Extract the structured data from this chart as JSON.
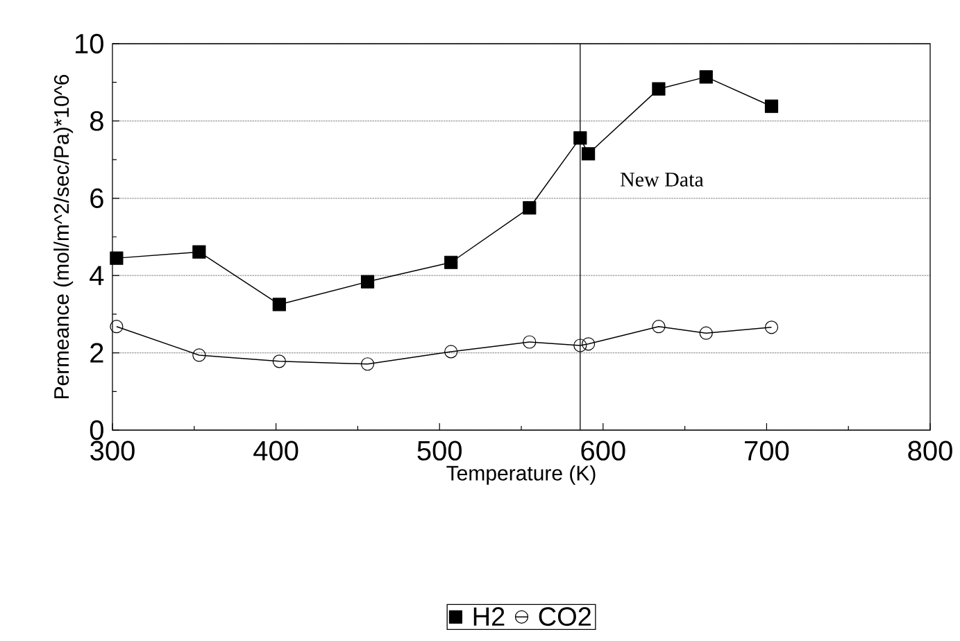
{
  "chart_data": {
    "type": "line",
    "xlabel": "Temperature (K)",
    "ylabel": "Permeance (mol/m^2/sec/Pa)*10^6",
    "x": [
      302.5,
      353,
      402,
      456,
      507,
      555,
      586,
      591,
      634,
      663,
      703
    ],
    "series": [
      {
        "name": "H2",
        "color": "#000000",
        "marker": "square",
        "values": [
          4.45,
          4.61,
          3.25,
          3.84,
          4.34,
          5.75,
          7.56,
          7.15,
          8.83,
          9.14,
          8.38
        ]
      },
      {
        "name": "CO2",
        "color": "#000000",
        "marker": "circle",
        "values": [
          2.68,
          1.94,
          1.78,
          1.71,
          2.03,
          2.28,
          2.19,
          2.23,
          2.68,
          2.51,
          2.66
        ]
      }
    ],
    "xlim": [
      300,
      800
    ],
    "ylim": [
      0,
      10
    ],
    "xticks": [
      300,
      400,
      500,
      600,
      700,
      800
    ],
    "yticks": [
      0,
      2,
      4,
      6,
      8,
      10
    ],
    "ref_lines": [
      {
        "axis": "x",
        "value": 586,
        "label": "New Data",
        "color": "#000000",
        "line_style": "solid"
      }
    ],
    "grid": "y",
    "legend": "bottom",
    "line_style": "solid"
  }
}
